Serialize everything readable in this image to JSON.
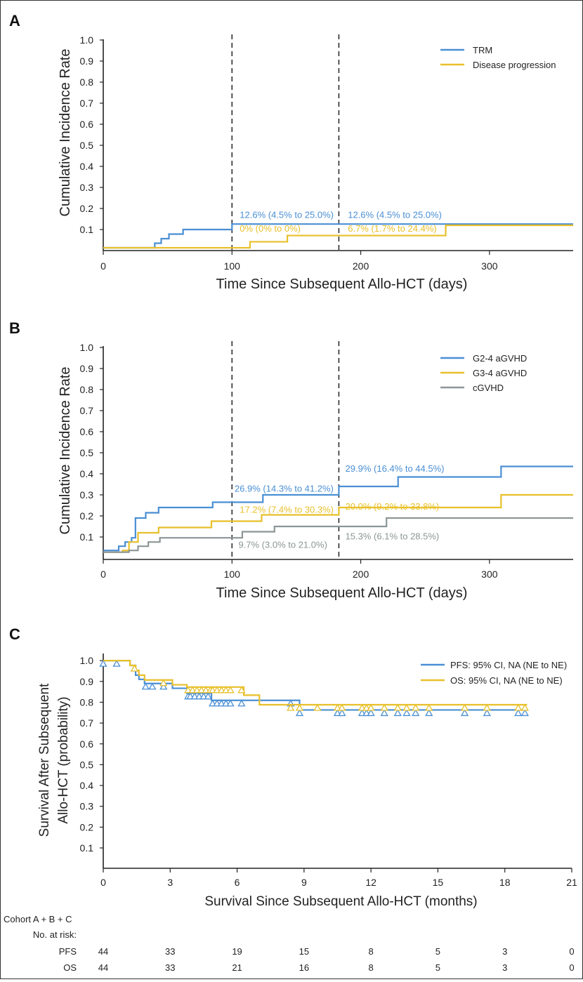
{
  "chart_data": [
    {
      "panel": "A",
      "type": "line",
      "ylabel": "Cumulative Incidence Rate",
      "xlabel": "Time Since Subsequent Allo-HCT (days)",
      "xlim": [
        0,
        365
      ],
      "ylim": [
        0,
        1.0
      ],
      "xticks": [
        "0",
        "100",
        "200",
        "300"
      ],
      "yticks": [
        "0.1",
        "0.2",
        "0.3",
        "0.4",
        "0.5",
        "0.6",
        "0.7",
        "0.8",
        "0.9",
        "1.0"
      ],
      "reference_lines": [
        100,
        183
      ],
      "series": [
        {
          "name": "TRM",
          "color": "#4a8fd4",
          "steps": [
            [
              0,
              0.0
            ],
            [
              40,
              0.025
            ],
            [
              45,
              0.05
            ],
            [
              51,
              0.075
            ],
            [
              62,
              0.1
            ],
            [
              100,
              0.126
            ],
            [
              365,
              0.126
            ]
          ]
        },
        {
          "name": "Disease progression",
          "color": "#e8c02a",
          "steps": [
            [
              0,
              0.0
            ],
            [
              114,
              0.033
            ],
            [
              143,
              0.067
            ],
            [
              266,
              0.12
            ],
            [
              365,
              0.12
            ]
          ]
        }
      ],
      "annotations": [
        {
          "text": "12.6% (4.5% to 25.0%)",
          "series": "TRM",
          "x": 106,
          "y": 0.155
        },
        {
          "text": "12.6% (4.5% to 25.0%)",
          "series": "TRM",
          "x": 190,
          "y": 0.155
        },
        {
          "text": "0% (0% to 0%)",
          "series": "Disease progression",
          "x": 106,
          "y": 0.088
        },
        {
          "text": "6.7% (1.7% to 24.4%)",
          "series": "Disease progression",
          "x": 190,
          "y": 0.088
        }
      ]
    },
    {
      "panel": "B",
      "type": "line",
      "ylabel": "Cumulative Incidence Rate",
      "xlabel": "Time Since Subsequent Allo-HCT (days)",
      "xlim": [
        0,
        365
      ],
      "ylim": [
        0,
        1.0
      ],
      "xticks": [
        "0",
        "100",
        "200",
        "300"
      ],
      "yticks": [
        "0.1",
        "0.2",
        "0.3",
        "0.4",
        "0.5",
        "0.6",
        "0.7",
        "0.8",
        "0.9",
        "1.0"
      ],
      "reference_lines": [
        100,
        183
      ],
      "series": [
        {
          "name": "G2-4 aGVHD",
          "color": "#4a8fd4",
          "steps": [
            [
              0,
              0.02
            ],
            [
              12,
              0.045
            ],
            [
              17,
              0.07
            ],
            [
              22,
              0.095
            ],
            [
              25,
              0.19
            ],
            [
              33,
              0.215
            ],
            [
              43,
              0.24
            ],
            [
              85,
              0.265
            ],
            [
              124,
              0.3
            ],
            [
              183,
              0.34
            ],
            [
              229,
              0.385
            ],
            [
              309,
              0.435
            ],
            [
              365,
              0.435
            ]
          ]
        },
        {
          "name": "G3-4 aGVHD",
          "color": "#e8c02a",
          "steps": [
            [
              0,
              0.01
            ],
            [
              15,
              0.02
            ],
            [
              20,
              0.07
            ],
            [
              27,
              0.12
            ],
            [
              43,
              0.145
            ],
            [
              84,
              0.175
            ],
            [
              123,
              0.205
            ],
            [
              183,
              0.24
            ],
            [
              309,
              0.3
            ],
            [
              365,
              0.3
            ]
          ]
        },
        {
          "name": "cGVHD",
          "color": "#8c9696",
          "steps": [
            [
              0,
              0.01
            ],
            [
              20,
              0.02
            ],
            [
              27,
              0.045
            ],
            [
              35,
              0.07
            ],
            [
              44,
              0.095
            ],
            [
              108,
              0.125
            ],
            [
              133,
              0.15
            ],
            [
              220,
              0.19
            ],
            [
              365,
              0.19
            ]
          ]
        }
      ],
      "annotations": [
        {
          "text": "26.9% (14.3% to 41.2%)",
          "series": "G2-4 aGVHD",
          "x": 102,
          "y": 0.315
        },
        {
          "text": "29.9% (16.4% to 44.5%)",
          "series": "G2-4 aGVHD",
          "x": 188,
          "y": 0.41
        },
        {
          "text": "17.2% (7.4% to 30.3%)",
          "series": "G3-4 aGVHD",
          "x": 106,
          "y": 0.215
        },
        {
          "text": "20.0% (9.2% to 33.8%)",
          "series": "G3-4 aGVHD",
          "x": 188,
          "y": 0.23
        },
        {
          "text": "9.7% (3.0% to 21.0%)",
          "series": "cGVHD",
          "x": 105,
          "y": 0.035
        },
        {
          "text": "15.3% (6.1% to 28.5%)",
          "series": "cGVHD",
          "x": 188,
          "y": 0.085
        }
      ]
    },
    {
      "panel": "C",
      "type": "line",
      "ylabel": "Survival After Subsequent Allo-HCT (probability)",
      "xlabel": "Survival Since Subsequent Allo-HCT (months)",
      "xlim": [
        0,
        21
      ],
      "ylim": [
        0,
        1.0
      ],
      "xticks": [
        "0",
        "3",
        "6",
        "9",
        "12",
        "15",
        "18",
        "21"
      ],
      "yticks": [
        "0.1",
        "0.2",
        "0.3",
        "0.4",
        "0.5",
        "0.6",
        "0.7",
        "0.8",
        "0.9",
        "1.0"
      ],
      "series": [
        {
          "name": "PFS: 95% CI, NA (NE to NE)",
          "color": "#4a8fd4",
          "steps": [
            [
              0,
              1.0
            ],
            [
              1.2,
              0.977
            ],
            [
              1.45,
              0.93
            ],
            [
              1.6,
              0.91
            ],
            [
              1.85,
              0.89
            ],
            [
              3.1,
              0.867
            ],
            [
              3.75,
              0.843
            ],
            [
              4.85,
              0.809
            ],
            [
              8.8,
              0.763
            ],
            [
              19.0,
              0.763
            ]
          ],
          "censored": [
            0,
            0.6,
            1.4,
            1.9,
            2.2,
            2.7,
            3.8,
            3.9,
            4.1,
            4.3,
            4.5,
            4.7,
            4.9,
            5.1,
            5.3,
            5.5,
            5.7,
            6.2,
            8.4,
            8.8,
            10.5,
            10.7,
            11.6,
            11.8,
            12.0,
            12.6,
            13.2,
            13.6,
            14.0,
            14.6,
            16.2,
            17.2,
            18.6,
            18.9
          ]
        },
        {
          "name": "OS: 95% CI,  NA (NE to NE)",
          "color": "#e8c02a",
          "steps": [
            [
              0,
              1.0
            ],
            [
              1.2,
              0.977
            ],
            [
              1.45,
              0.953
            ],
            [
              1.6,
              0.93
            ],
            [
              1.85,
              0.907
            ],
            [
              3.1,
              0.884
            ],
            [
              3.75,
              0.873
            ],
            [
              6.3,
              0.834
            ],
            [
              7.0,
              0.788
            ],
            [
              19.0,
              0.788
            ]
          ],
          "censored": [
            1.4,
            2.7,
            3.8,
            4.0,
            4.2,
            4.4,
            4.6,
            4.8,
            4.9,
            5.1,
            5.3,
            5.5,
            5.7,
            6.2,
            8.4,
            8.8,
            9.6,
            10.5,
            10.7,
            11.6,
            11.8,
            12.0,
            12.6,
            13.2,
            13.6,
            14.0,
            14.6,
            16.2,
            17.2,
            18.6,
            18.9
          ]
        }
      ]
    }
  ],
  "panel_labels": {
    "a": "A",
    "b": "B",
    "c": "C"
  },
  "risk_table": {
    "cohort": "Cohort A + B + C",
    "header": "No. at risk:",
    "rows": [
      {
        "label": "PFS",
        "values": [
          "44",
          "33",
          "19",
          "15",
          "8",
          "5",
          "3",
          "0"
        ]
      },
      {
        "label": "OS",
        "values": [
          "44",
          "33",
          "21",
          "16",
          "8",
          "5",
          "3",
          "0"
        ]
      }
    ]
  }
}
